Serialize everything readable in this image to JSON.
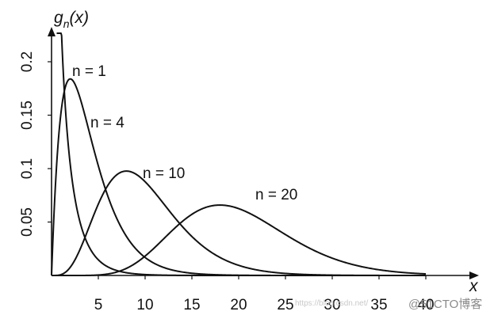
{
  "chart_data": {
    "type": "line",
    "title": "",
    "xlabel": "x",
    "ylabel_parts": {
      "base": "g",
      "subscript": "n",
      "suffix": "(x)"
    },
    "xlim": [
      0,
      43
    ],
    "ylim": [
      0,
      0.235
    ],
    "xticks": [
      5,
      10,
      15,
      20,
      25,
      30,
      35,
      40
    ],
    "yticks": [
      0.05,
      0.1,
      0.15,
      0.2
    ],
    "ytick_labels": [
      "0.05",
      "0.1",
      "0.15",
      "0.2"
    ],
    "series": [
      {
        "name": "n = 1",
        "dof": 1
      },
      {
        "name": "n = 4",
        "dof": 4
      },
      {
        "name": "n = 10",
        "dof": 10
      },
      {
        "name": "n = 20",
        "dof": 20
      }
    ],
    "annotations": [
      {
        "text": "n = 1",
        "series": 0
      },
      {
        "text": "n = 4",
        "series": 1
      },
      {
        "text": "n = 10",
        "series": 2
      },
      {
        "text": "n = 20",
        "series": 3
      }
    ],
    "grid": false,
    "legend": "none"
  },
  "watermark": {
    "url": "https://blog.csdn.net/",
    "brand": "@51CTO博客"
  }
}
